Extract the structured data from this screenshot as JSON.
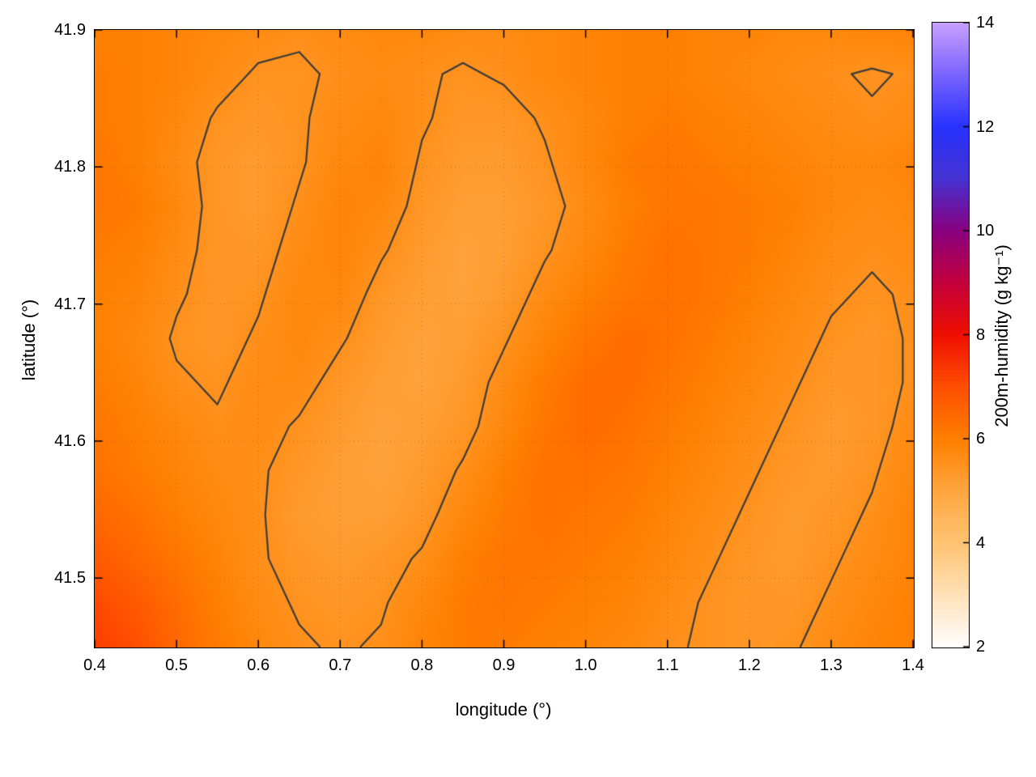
{
  "page": {
    "background": "#ffffff"
  },
  "chart_data": {
    "type": "heatmap",
    "title": "",
    "xlabel": "longitude (°)",
    "ylabel": "latitude (°)",
    "x_range": [
      0.4,
      1.4
    ],
    "y_range": [
      41.45,
      41.9
    ],
    "x_tick_values": [
      0.4,
      0.5,
      0.6,
      0.7,
      0.8,
      0.9,
      1.0,
      1.1,
      1.2,
      1.3,
      1.4
    ],
    "x_tick_labels": [
      "0.4",
      "0.5",
      "0.6",
      "0.7",
      "0.8",
      "0.9",
      "1.0",
      "1.1",
      "1.2",
      "1.3",
      "1.4"
    ],
    "y_tick_values": [
      41.5,
      41.6,
      41.7,
      41.8,
      41.9
    ],
    "y_tick_labels": [
      "41.5",
      "41.6",
      "41.7",
      "41.8",
      "41.9"
    ],
    "grid_on": true,
    "gridline_color": "rgba(70,70,70,0.32)",
    "contour": {
      "levels": [
        5.55
      ],
      "color": "#3c3c3c"
    },
    "colorbar": {
      "label": "200m-humidity (g kg⁻¹)",
      "range": [
        2,
        14
      ],
      "tick_values": [
        2,
        4,
        6,
        8,
        10,
        12,
        14
      ],
      "tick_labels": [
        "2",
        "4",
        "6",
        "8",
        "10",
        "12",
        "14"
      ],
      "stops": [
        [
          2,
          "#ffffff"
        ],
        [
          4,
          "#ffc473"
        ],
        [
          5,
          "#ffa640"
        ],
        [
          6,
          "#ff8000"
        ],
        [
          7,
          "#ff4f00"
        ],
        [
          8,
          "#f01000"
        ],
        [
          9,
          "#c4003c"
        ],
        [
          10,
          "#8a0080"
        ],
        [
          11,
          "#4632d2"
        ],
        [
          12,
          "#2832ff"
        ],
        [
          13,
          "#7a64ff"
        ],
        [
          14,
          "#c8a0ff"
        ]
      ]
    },
    "field": {
      "units": "g/kg",
      "lon_start": 0.4,
      "lon_step": 0.05,
      "lat_start": 41.9,
      "lat_step": -0.0321428571,
      "values": [
        [
          6.0,
          6.0,
          5.9,
          5.8,
          5.7,
          5.6,
          5.7,
          5.8,
          5.8,
          5.7,
          5.7,
          5.8,
          5.9,
          6.0,
          6.0,
          5.9,
          5.9,
          5.8,
          5.8,
          5.9,
          5.9
        ],
        [
          6.1,
          6.0,
          5.9,
          5.7,
          5.5,
          5.5,
          5.6,
          5.7,
          5.6,
          5.5,
          5.6,
          5.8,
          5.9,
          6.0,
          6.0,
          5.9,
          5.8,
          5.7,
          5.6,
          5.5,
          5.6
        ],
        [
          6.1,
          6.0,
          5.8,
          5.5,
          5.4,
          5.5,
          5.7,
          5.8,
          5.6,
          5.4,
          5.4,
          5.6,
          5.8,
          6.0,
          6.1,
          6.0,
          5.9,
          5.8,
          5.7,
          5.6,
          5.7
        ],
        [
          6.2,
          6.0,
          5.7,
          5.4,
          5.3,
          5.5,
          5.8,
          5.9,
          5.5,
          5.3,
          5.3,
          5.5,
          5.8,
          6.1,
          6.2,
          6.1,
          6.0,
          5.9,
          5.8,
          5.8,
          5.9
        ],
        [
          6.2,
          6.1,
          5.8,
          5.4,
          5.3,
          5.6,
          5.9,
          5.8,
          5.4,
          5.2,
          5.2,
          5.4,
          5.7,
          6.0,
          6.2,
          6.2,
          6.1,
          6.0,
          5.8,
          5.7,
          5.8
        ],
        [
          6.1,
          6.0,
          5.7,
          5.4,
          5.4,
          5.7,
          5.9,
          5.6,
          5.3,
          5.1,
          5.2,
          5.5,
          5.8,
          6.1,
          6.3,
          6.2,
          6.1,
          5.9,
          5.7,
          5.6,
          5.7
        ],
        [
          6.0,
          5.9,
          5.6,
          5.4,
          5.5,
          5.8,
          5.8,
          5.4,
          5.2,
          5.1,
          5.3,
          5.7,
          6.0,
          6.2,
          6.3,
          6.2,
          6.0,
          5.8,
          5.6,
          5.5,
          5.6
        ],
        [
          6.0,
          5.8,
          5.5,
          5.4,
          5.6,
          5.8,
          5.6,
          5.3,
          5.1,
          5.2,
          5.5,
          5.9,
          6.2,
          6.4,
          6.3,
          6.1,
          5.9,
          5.7,
          5.5,
          5.4,
          5.6
        ],
        [
          6.1,
          5.9,
          5.6,
          5.5,
          5.7,
          5.7,
          5.4,
          5.2,
          5.1,
          5.3,
          5.7,
          6.1,
          6.4,
          6.4,
          6.2,
          6.0,
          5.8,
          5.6,
          5.4,
          5.4,
          5.6
        ],
        [
          6.2,
          6.0,
          5.8,
          5.6,
          5.7,
          5.5,
          5.3,
          5.1,
          5.2,
          5.4,
          5.8,
          6.2,
          6.4,
          6.3,
          6.1,
          5.9,
          5.7,
          5.5,
          5.3,
          5.4,
          5.7
        ],
        [
          6.3,
          6.1,
          5.9,
          5.7,
          5.6,
          5.4,
          5.2,
          5.1,
          5.3,
          5.6,
          6.0,
          6.3,
          6.3,
          6.2,
          6.0,
          5.8,
          5.6,
          5.4,
          5.3,
          5.5,
          5.8
        ],
        [
          6.5,
          6.3,
          6.0,
          5.8,
          5.6,
          5.3,
          5.2,
          5.2,
          5.4,
          5.8,
          6.1,
          6.3,
          6.2,
          6.1,
          5.9,
          5.7,
          5.5,
          5.3,
          5.4,
          5.6,
          5.9
        ],
        [
          6.8,
          6.5,
          6.2,
          5.9,
          5.6,
          5.4,
          5.3,
          5.4,
          5.6,
          6.0,
          6.2,
          6.2,
          6.1,
          6.0,
          5.8,
          5.6,
          5.4,
          5.3,
          5.5,
          5.7,
          5.9
        ],
        [
          7.1,
          6.8,
          6.4,
          6.0,
          5.7,
          5.5,
          5.4,
          5.5,
          5.8,
          6.1,
          6.2,
          6.1,
          6.0,
          5.9,
          5.7,
          5.5,
          5.4,
          5.4,
          5.6,
          5.8,
          6.0
        ],
        [
          7.3,
          7.0,
          6.5,
          6.1,
          5.8,
          5.6,
          5.5,
          5.6,
          5.9,
          6.1,
          6.1,
          6.0,
          5.9,
          5.8,
          5.6,
          5.5,
          5.4,
          5.5,
          5.7,
          5.9,
          6.0
        ]
      ]
    }
  }
}
